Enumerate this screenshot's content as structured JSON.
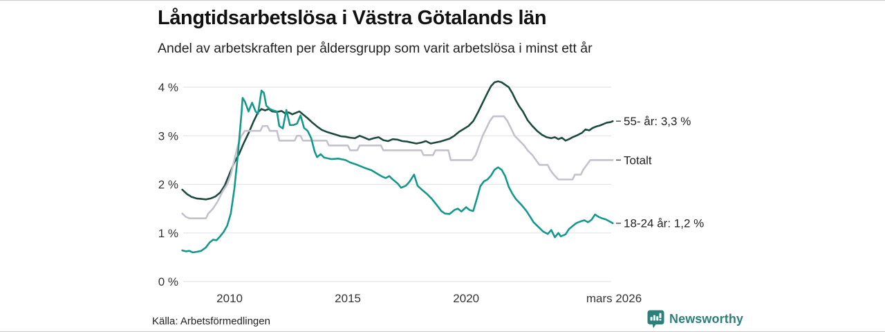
{
  "header": {
    "title": "Långtidsarbetslösa i Västra Götalands län",
    "subtitle": "Andel av arbetskraften per åldersgrupp som varit arbetslösa i minst ett år"
  },
  "footer": {
    "source": "Källa: Arbetsförmedlingen",
    "brand": "Newsworthy",
    "brand_color": "#2b807a"
  },
  "colors": {
    "grid": "#e4e2e7",
    "axis_text": "#333333",
    "label_text": "#222222",
    "label_tick": "#4a4a4a",
    "border": "#cccccc"
  },
  "chart_data": {
    "type": "line",
    "title": "Långtidsarbetslösa i Västra Götalands län",
    "subtitle": "Andel av arbetskraften per åldersgrupp som varit arbetslösa i minst ett år",
    "xlabel": "",
    "ylabel": "",
    "x_range": [
      2008.04,
      2026.25
    ],
    "y_range": [
      0,
      4
    ],
    "grid": true,
    "legend_position": "right-of-line-end",
    "yticks": [
      {
        "value": 0,
        "label": "0 %"
      },
      {
        "value": 1,
        "label": "1 %"
      },
      {
        "value": 2,
        "label": "2 %"
      },
      {
        "value": 3,
        "label": "3 %"
      },
      {
        "value": 4,
        "label": "4 %"
      }
    ],
    "xticks": [
      {
        "value": 2010,
        "label": "2010"
      },
      {
        "value": 2015,
        "label": "2015"
      },
      {
        "value": 2020,
        "label": "2020"
      },
      {
        "value": 2026.25,
        "label": "mars 2026"
      }
    ],
    "series": [
      {
        "name": "55- år",
        "label": "55- år: 3,3 %",
        "end_value": "3,3 %",
        "color": "#1d4a3f",
        "points": [
          [
            2008.0,
            1.89
          ],
          [
            2008.2,
            1.8
          ],
          [
            2008.4,
            1.74
          ],
          [
            2008.6,
            1.71
          ],
          [
            2008.8,
            1.7
          ],
          [
            2009.0,
            1.69
          ],
          [
            2009.2,
            1.71
          ],
          [
            2009.4,
            1.75
          ],
          [
            2009.6,
            1.83
          ],
          [
            2009.8,
            1.98
          ],
          [
            2010.0,
            2.22
          ],
          [
            2010.2,
            2.45
          ],
          [
            2010.4,
            2.62
          ],
          [
            2010.6,
            2.85
          ],
          [
            2010.8,
            3.05
          ],
          [
            2011.0,
            3.28
          ],
          [
            2011.2,
            3.48
          ],
          [
            2011.35,
            3.55
          ],
          [
            2011.5,
            3.52
          ],
          [
            2011.65,
            3.55
          ],
          [
            2011.8,
            3.5
          ],
          [
            2012.0,
            3.49
          ],
          [
            2012.2,
            3.51
          ],
          [
            2012.35,
            3.46
          ],
          [
            2012.5,
            3.48
          ],
          [
            2012.65,
            3.44
          ],
          [
            2012.8,
            3.47
          ],
          [
            2012.95,
            3.5
          ],
          [
            2013.1,
            3.44
          ],
          [
            2013.3,
            3.36
          ],
          [
            2013.5,
            3.27
          ],
          [
            2013.7,
            3.19
          ],
          [
            2013.9,
            3.12
          ],
          [
            2014.1,
            3.08
          ],
          [
            2014.3,
            3.05
          ],
          [
            2014.5,
            3.02
          ],
          [
            2014.7,
            2.99
          ],
          [
            2014.9,
            2.98
          ],
          [
            2015.1,
            2.96
          ],
          [
            2015.3,
            2.95
          ],
          [
            2015.5,
            3.0
          ],
          [
            2015.7,
            2.96
          ],
          [
            2015.9,
            2.92
          ],
          [
            2016.1,
            2.95
          ],
          [
            2016.3,
            2.97
          ],
          [
            2016.5,
            2.91
          ],
          [
            2016.7,
            2.89
          ],
          [
            2016.9,
            2.93
          ],
          [
            2017.1,
            2.92
          ],
          [
            2017.3,
            2.89
          ],
          [
            2017.5,
            2.88
          ],
          [
            2017.7,
            2.86
          ],
          [
            2017.9,
            2.84
          ],
          [
            2018.1,
            2.86
          ],
          [
            2018.3,
            2.89
          ],
          [
            2018.5,
            2.84
          ],
          [
            2018.7,
            2.86
          ],
          [
            2018.9,
            2.88
          ],
          [
            2019.1,
            2.91
          ],
          [
            2019.3,
            2.94
          ],
          [
            2019.5,
            3.0
          ],
          [
            2019.7,
            3.08
          ],
          [
            2019.9,
            3.14
          ],
          [
            2020.1,
            3.2
          ],
          [
            2020.3,
            3.3
          ],
          [
            2020.5,
            3.48
          ],
          [
            2020.7,
            3.68
          ],
          [
            2020.9,
            3.88
          ],
          [
            2021.05,
            4.02
          ],
          [
            2021.2,
            4.1
          ],
          [
            2021.35,
            4.12
          ],
          [
            2021.5,
            4.1
          ],
          [
            2021.65,
            4.05
          ],
          [
            2021.8,
            4.0
          ],
          [
            2021.95,
            3.88
          ],
          [
            2022.1,
            3.73
          ],
          [
            2022.25,
            3.6
          ],
          [
            2022.4,
            3.5
          ],
          [
            2022.6,
            3.32
          ],
          [
            2022.8,
            3.2
          ],
          [
            2023.0,
            3.1
          ],
          [
            2023.2,
            3.02
          ],
          [
            2023.4,
            2.97
          ],
          [
            2023.6,
            2.95
          ],
          [
            2023.75,
            2.97
          ],
          [
            2023.9,
            2.93
          ],
          [
            2024.05,
            2.96
          ],
          [
            2024.2,
            2.9
          ],
          [
            2024.35,
            2.93
          ],
          [
            2024.5,
            2.97
          ],
          [
            2024.7,
            3.01
          ],
          [
            2024.9,
            3.06
          ],
          [
            2025.05,
            3.13
          ],
          [
            2025.2,
            3.11
          ],
          [
            2025.35,
            3.16
          ],
          [
            2025.5,
            3.19
          ],
          [
            2025.65,
            3.21
          ],
          [
            2025.8,
            3.24
          ],
          [
            2025.95,
            3.27
          ],
          [
            2026.1,
            3.28
          ],
          [
            2026.2,
            3.3
          ]
        ]
      },
      {
        "name": "Totalt",
        "label": "Totalt",
        "end_value": "2,5 %",
        "color": "#c5c1cc",
        "points": [
          [
            2008.0,
            1.4
          ],
          [
            2008.15,
            1.33
          ],
          [
            2008.3,
            1.3
          ],
          [
            2009.0,
            1.3
          ],
          [
            2009.1,
            1.4
          ],
          [
            2009.3,
            1.5
          ],
          [
            2009.5,
            1.65
          ],
          [
            2009.7,
            1.85
          ],
          [
            2009.9,
            2.0
          ],
          [
            2010.05,
            2.2
          ],
          [
            2010.2,
            2.5
          ],
          [
            2010.35,
            2.8
          ],
          [
            2010.5,
            3.0
          ],
          [
            2010.65,
            3.1
          ],
          [
            2011.3,
            3.1
          ],
          [
            2011.4,
            3.2
          ],
          [
            2011.6,
            3.2
          ],
          [
            2011.7,
            3.1
          ],
          [
            2012.0,
            3.1
          ],
          [
            2012.1,
            2.9
          ],
          [
            2012.75,
            2.9
          ],
          [
            2012.85,
            3.0
          ],
          [
            2013.0,
            3.0
          ],
          [
            2013.1,
            2.9
          ],
          [
            2014.1,
            2.9
          ],
          [
            2014.2,
            2.8
          ],
          [
            2015.0,
            2.8
          ],
          [
            2015.1,
            2.7
          ],
          [
            2015.4,
            2.7
          ],
          [
            2015.5,
            2.8
          ],
          [
            2016.4,
            2.8
          ],
          [
            2016.5,
            2.7
          ],
          [
            2018.1,
            2.7
          ],
          [
            2018.2,
            2.6
          ],
          [
            2018.6,
            2.6
          ],
          [
            2018.7,
            2.7
          ],
          [
            2019.25,
            2.7
          ],
          [
            2019.35,
            2.5
          ],
          [
            2020.25,
            2.5
          ],
          [
            2020.4,
            2.6
          ],
          [
            2020.55,
            2.8
          ],
          [
            2020.7,
            3.0
          ],
          [
            2020.85,
            3.15
          ],
          [
            2021.0,
            3.3
          ],
          [
            2021.15,
            3.4
          ],
          [
            2021.6,
            3.4
          ],
          [
            2021.75,
            3.3
          ],
          [
            2021.9,
            3.15
          ],
          [
            2022.05,
            3.0
          ],
          [
            2022.25,
            2.9
          ],
          [
            2022.45,
            2.8
          ],
          [
            2022.6,
            2.7
          ],
          [
            2022.8,
            2.6
          ],
          [
            2022.95,
            2.5
          ],
          [
            2023.1,
            2.4
          ],
          [
            2023.45,
            2.4
          ],
          [
            2023.55,
            2.3
          ],
          [
            2023.7,
            2.2
          ],
          [
            2023.9,
            2.1
          ],
          [
            2024.5,
            2.1
          ],
          [
            2024.6,
            2.2
          ],
          [
            2024.85,
            2.2
          ],
          [
            2024.95,
            2.3
          ],
          [
            2025.1,
            2.4
          ],
          [
            2025.25,
            2.5
          ],
          [
            2026.2,
            2.5
          ]
        ]
      },
      {
        "name": "18-24 år",
        "label": "18-24 år: 1,2 %",
        "end_value": "1,2 %",
        "color": "#13988b",
        "points": [
          [
            2008.0,
            0.64
          ],
          [
            2008.15,
            0.62
          ],
          [
            2008.3,
            0.63
          ],
          [
            2008.45,
            0.6
          ],
          [
            2008.6,
            0.61
          ],
          [
            2008.8,
            0.63
          ],
          [
            2009.0,
            0.7
          ],
          [
            2009.15,
            0.8
          ],
          [
            2009.3,
            0.86
          ],
          [
            2009.45,
            0.85
          ],
          [
            2009.6,
            0.93
          ],
          [
            2009.75,
            1.02
          ],
          [
            2009.9,
            1.15
          ],
          [
            2010.05,
            1.4
          ],
          [
            2010.2,
            1.9
          ],
          [
            2010.35,
            2.6
          ],
          [
            2010.5,
            3.45
          ],
          [
            2010.55,
            3.78
          ],
          [
            2010.65,
            3.7
          ],
          [
            2010.8,
            3.5
          ],
          [
            2010.95,
            3.68
          ],
          [
            2011.1,
            3.5
          ],
          [
            2011.2,
            3.45
          ],
          [
            2011.35,
            3.93
          ],
          [
            2011.45,
            3.88
          ],
          [
            2011.55,
            3.62
          ],
          [
            2011.7,
            3.55
          ],
          [
            2011.85,
            3.52
          ],
          [
            2012.0,
            3.5
          ],
          [
            2012.1,
            3.2
          ],
          [
            2012.25,
            3.15
          ],
          [
            2012.4,
            3.53
          ],
          [
            2012.55,
            3.22
          ],
          [
            2012.7,
            3.22
          ],
          [
            2012.85,
            3.25
          ],
          [
            2013.0,
            3.42
          ],
          [
            2013.15,
            3.16
          ],
          [
            2013.3,
            3.1
          ],
          [
            2013.45,
            2.95
          ],
          [
            2013.6,
            2.67
          ],
          [
            2013.7,
            2.56
          ],
          [
            2013.85,
            2.62
          ],
          [
            2014.0,
            2.55
          ],
          [
            2014.3,
            2.52
          ],
          [
            2014.6,
            2.53
          ],
          [
            2014.9,
            2.5
          ],
          [
            2015.1,
            2.45
          ],
          [
            2015.4,
            2.4
          ],
          [
            2015.7,
            2.34
          ],
          [
            2016.0,
            2.29
          ],
          [
            2016.3,
            2.2
          ],
          [
            2016.45,
            2.16
          ],
          [
            2016.6,
            2.13
          ],
          [
            2016.75,
            2.17
          ],
          [
            2016.9,
            2.1
          ],
          [
            2017.1,
            2.02
          ],
          [
            2017.25,
            1.93
          ],
          [
            2017.45,
            1.97
          ],
          [
            2017.6,
            2.05
          ],
          [
            2017.8,
            2.2
          ],
          [
            2017.95,
            1.97
          ],
          [
            2018.15,
            1.88
          ],
          [
            2018.35,
            1.8
          ],
          [
            2018.55,
            1.7
          ],
          [
            2018.75,
            1.58
          ],
          [
            2018.95,
            1.45
          ],
          [
            2019.1,
            1.4
          ],
          [
            2019.3,
            1.39
          ],
          [
            2019.5,
            1.47
          ],
          [
            2019.65,
            1.5
          ],
          [
            2019.8,
            1.44
          ],
          [
            2020.0,
            1.53
          ],
          [
            2020.15,
            1.47
          ],
          [
            2020.3,
            1.45
          ],
          [
            2020.45,
            1.7
          ],
          [
            2020.6,
            1.96
          ],
          [
            2020.75,
            2.06
          ],
          [
            2020.9,
            2.1
          ],
          [
            2021.05,
            2.18
          ],
          [
            2021.2,
            2.3
          ],
          [
            2021.35,
            2.35
          ],
          [
            2021.5,
            2.3
          ],
          [
            2021.65,
            2.17
          ],
          [
            2021.8,
            1.95
          ],
          [
            2021.95,
            1.81
          ],
          [
            2022.1,
            1.7
          ],
          [
            2022.35,
            1.57
          ],
          [
            2022.55,
            1.45
          ],
          [
            2022.7,
            1.34
          ],
          [
            2022.85,
            1.22
          ],
          [
            2023.0,
            1.15
          ],
          [
            2023.25,
            1.03
          ],
          [
            2023.45,
            0.98
          ],
          [
            2023.6,
            1.06
          ],
          [
            2023.75,
            0.91
          ],
          [
            2023.9,
            1.0
          ],
          [
            2024.0,
            0.93
          ],
          [
            2024.2,
            0.97
          ],
          [
            2024.35,
            1.08
          ],
          [
            2024.5,
            1.14
          ],
          [
            2024.65,
            1.2
          ],
          [
            2024.85,
            1.24
          ],
          [
            2025.0,
            1.26
          ],
          [
            2025.15,
            1.22
          ],
          [
            2025.3,
            1.27
          ],
          [
            2025.45,
            1.38
          ],
          [
            2025.6,
            1.33
          ],
          [
            2025.75,
            1.3
          ],
          [
            2025.9,
            1.28
          ],
          [
            2026.05,
            1.24
          ],
          [
            2026.2,
            1.2
          ]
        ]
      }
    ]
  }
}
